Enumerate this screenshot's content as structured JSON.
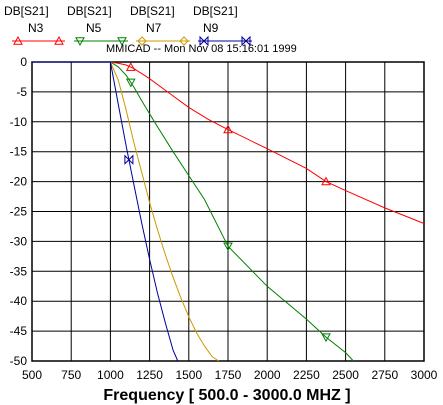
{
  "series_headers": [
    "DB[S21]",
    "DB[S21]",
    "DB[S21]",
    "DB[S21]"
  ],
  "subtitle": "MMICAD -- Mon Nov 08 15:16:01 1999",
  "colors": {
    "N3": "#ff0000",
    "N5": "#008000",
    "N7": "#cc9900",
    "N9": "#000099",
    "grid": "#000000",
    "background": "#ffffff"
  },
  "chart_data": {
    "type": "line",
    "title": "",
    "xlabel": "Frequency [ 500.0 - 3000.0 MHZ ]",
    "ylabel": "",
    "xlim": [
      500,
      3000
    ],
    "ylim": [
      -50,
      0
    ],
    "xticks": [
      500,
      750,
      1000,
      1250,
      1500,
      1750,
      2000,
      2250,
      2500,
      2750,
      3000
    ],
    "yticks": [
      0,
      -5,
      -10,
      -15,
      -20,
      -25,
      -30,
      -35,
      -40,
      -45,
      -50
    ],
    "grid": true,
    "legend_position": "top-left",
    "series": [
      {
        "name": "N3",
        "color": "#ff0000",
        "marker": "triangle-up",
        "x": [
          500,
          900,
          1000,
          1050,
          1100,
          1150,
          1250,
          1375,
          1500,
          1625,
          1750,
          2000,
          2250,
          2375,
          2500,
          2750,
          3000
        ],
        "y": [
          0,
          0,
          0,
          -0.2,
          -0.5,
          -1.1,
          -2.8,
          -5.2,
          -7.6,
          -9.6,
          -11.3,
          -14.5,
          -17.8,
          -20,
          -21.5,
          -24.4,
          -27
        ],
        "marker_x": [
          1130,
          1750,
          2375
        ]
      },
      {
        "name": "N5",
        "color": "#008000",
        "marker": "triangle-down",
        "x": [
          500,
          900,
          1000,
          1050,
          1100,
          1150,
          1200,
          1300,
          1400,
          1500,
          1600,
          1750,
          2000,
          2250,
          2375,
          2500,
          2550
        ],
        "y": [
          0,
          0,
          0,
          -0.8,
          -2.2,
          -4.2,
          -6.5,
          -10.8,
          -15,
          -19,
          -23,
          -30.8,
          -37.5,
          -43,
          -46,
          -48.6,
          -50
        ],
        "marker_x": [
          1130,
          1750,
          2375
        ]
      },
      {
        "name": "N7",
        "color": "#cc9900",
        "marker": "diamond",
        "x": [
          500,
          900,
          1000,
          1050,
          1100,
          1150,
          1200,
          1250,
          1300,
          1350,
          1400,
          1450,
          1500,
          1550,
          1600,
          1650,
          1690
        ],
        "y": [
          0,
          0,
          0,
          -3,
          -8,
          -13.5,
          -18.5,
          -23.5,
          -28,
          -32.2,
          -36,
          -39.5,
          -42.6,
          -45.3,
          -47.5,
          -49.3,
          -50
        ],
        "marker_x": []
      },
      {
        "name": "N9",
        "color": "#000099",
        "marker": "bowtie",
        "x": [
          500,
          900,
          1000,
          1050,
          1100,
          1150,
          1200,
          1250,
          1300,
          1350,
          1400,
          1430
        ],
        "y": [
          0,
          0,
          0,
          -7,
          -14,
          -20.5,
          -27,
          -33,
          -38.6,
          -43.6,
          -48.2,
          -50
        ],
        "marker_x": [
          1118
        ]
      }
    ]
  }
}
